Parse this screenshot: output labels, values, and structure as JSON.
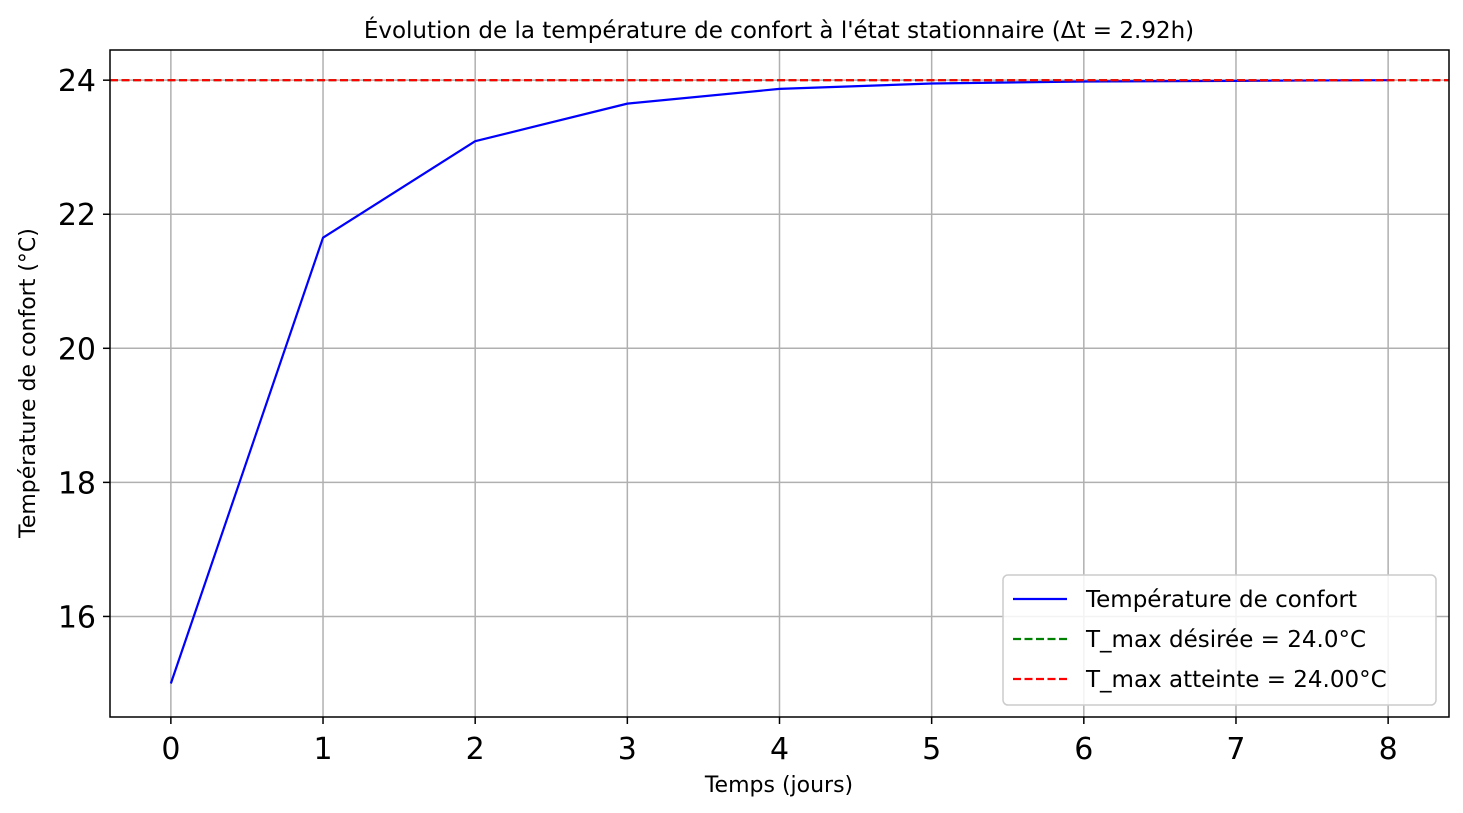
{
  "chart_data": {
    "type": "line",
    "title": "Évolution de la température de confort à l'état stationnaire (Δt = 2.92h)",
    "xlabel": "Temps (jours)",
    "ylabel": "Température de confort (°C)",
    "xlim": [
      -0.4,
      8.4
    ],
    "ylim": [
      14.5,
      24.45
    ],
    "xticks": [
      0,
      1,
      2,
      3,
      4,
      5,
      6,
      7,
      8
    ],
    "yticks": [
      16,
      18,
      20,
      22,
      24
    ],
    "grid": true,
    "legend_position": "bottom-right",
    "series": [
      {
        "name": "Température de confort",
        "color": "#0000ff",
        "style": "solid",
        "x": [
          0,
          1,
          2,
          3,
          4,
          5,
          6,
          7,
          8
        ],
        "y": [
          15.0,
          21.65,
          23.09,
          23.65,
          23.87,
          23.95,
          23.98,
          23.99,
          24.0
        ]
      }
    ],
    "reference_lines": [
      {
        "name": "T_max désirée = 24.0°C",
        "y": 24.0,
        "color": "#008000",
        "style": "dashed"
      },
      {
        "name": "T_max atteinte = 24.00°C",
        "y": 24.0,
        "color": "#ff0000",
        "style": "dashed"
      }
    ]
  }
}
